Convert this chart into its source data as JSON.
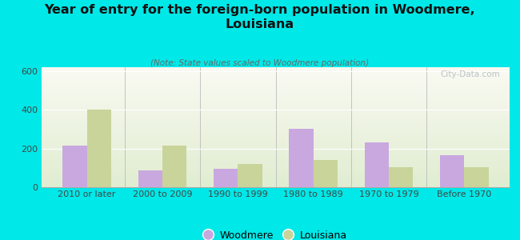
{
  "title": "Year of entry for the foreign-born population in Woodmere,\nLouisiana",
  "subtitle": "(Note: State values scaled to Woodmere population)",
  "categories": [
    "2010 or later",
    "2000 to 2009",
    "1990 to 1999",
    "1980 to 1989",
    "1970 to 1979",
    "Before 1970"
  ],
  "woodmere": [
    215,
    85,
    95,
    300,
    230,
    165
  ],
  "louisiana": [
    400,
    215,
    120,
    140,
    105,
    105
  ],
  "woodmere_color": "#c9a8e0",
  "louisiana_color": "#c8d49a",
  "background_color": "#00e8e8",
  "ylim": [
    0,
    620
  ],
  "yticks": [
    0,
    200,
    400,
    600
  ],
  "bar_width": 0.32,
  "legend_labels": [
    "Woodmere",
    "Louisiana"
  ],
  "watermark": "City-Data.com",
  "title_fontsize": 11.5,
  "subtitle_fontsize": 7.5,
  "tick_fontsize": 8,
  "legend_fontsize": 9
}
